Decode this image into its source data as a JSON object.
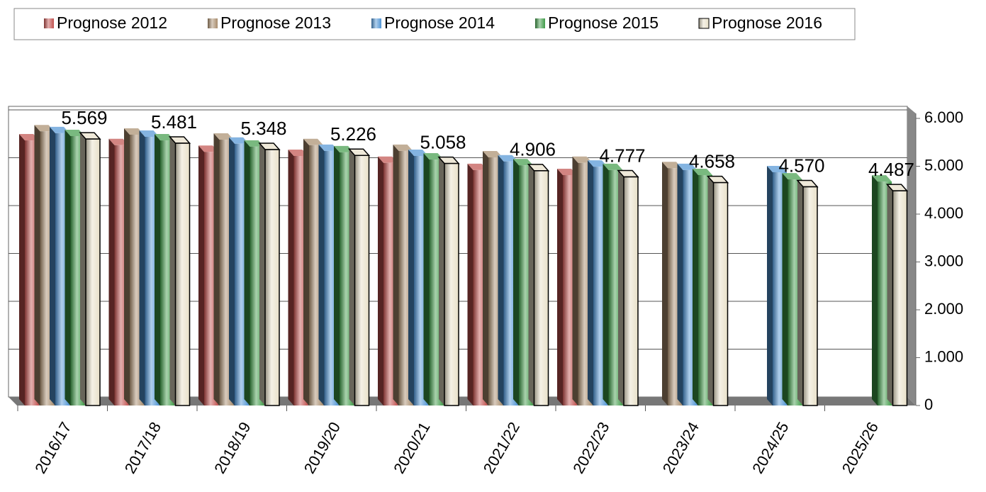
{
  "chart_data": {
    "type": "bar3d",
    "categories": [
      "2016/17",
      "2017/18",
      "2018/19",
      "2019/20",
      "2020/21",
      "2021/22",
      "2022/23",
      "2023/24",
      "2024/25",
      "2025/26"
    ],
    "series": [
      {
        "name": "Prognose 2012",
        "color": "#c0504d",
        "values": [
          5540,
          5440,
          5300,
          5215,
          5070,
          4920,
          4815,
          null,
          null,
          null
        ]
      },
      {
        "name": "Prognose 2013",
        "color": "#a88c6c",
        "values": [
          5730,
          5660,
          5555,
          5440,
          5320,
          5185,
          5070,
          4960,
          null,
          null
        ]
      },
      {
        "name": "Prognose 2014",
        "color": "#4f94d4",
        "values": [
          5690,
          5615,
          5470,
          5320,
          5215,
          5100,
          4990,
          4920,
          4875,
          null
        ]
      },
      {
        "name": "Prognose 2015",
        "color": "#3f9b48",
        "values": [
          5630,
          5540,
          5410,
          5290,
          5140,
          5020,
          4920,
          4815,
          4725,
          4680
        ]
      },
      {
        "name": "Prognose 2016",
        "color": "#e8e0c8",
        "values": [
          5569,
          5481,
          5348,
          5226,
          5058,
          4906,
          4777,
          4658,
          4570,
          4487
        ],
        "value_labels": [
          "5.569",
          "5.481",
          "5.348",
          "5.226",
          "5.058",
          "4.906",
          "4.777",
          "4.658",
          "4.570",
          "4.487"
        ]
      }
    ],
    "ylim": [
      0,
      6000
    ],
    "yticks": [
      0,
      {
        "value": 1000,
        "label": "1.000"
      },
      {
        "value": 2000,
        "label": "2.000"
      },
      {
        "value": 3000,
        "label": "3.000"
      },
      {
        "value": 4000,
        "label": "4.000"
      },
      {
        "value": 5000,
        "label": "5.000"
      },
      {
        "value": 6000,
        "label": "6.000"
      }
    ],
    "grid": true,
    "legend": "top"
  }
}
